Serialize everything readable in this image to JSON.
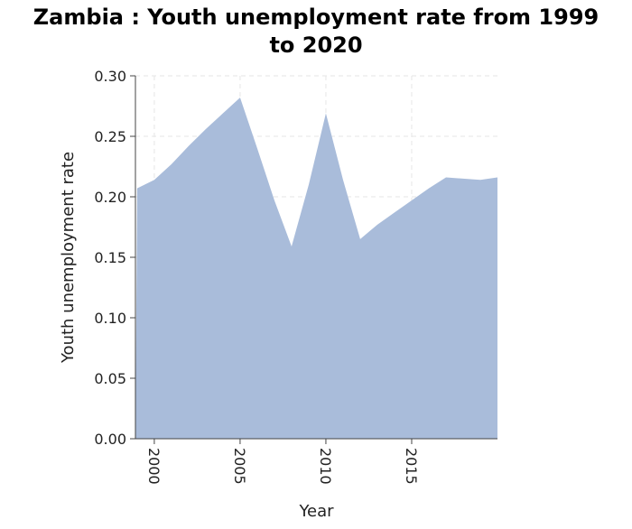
{
  "chart_data": {
    "type": "area",
    "title_lines": [
      "Zambia : Youth unemployment rate from 1999",
      "to 2020"
    ],
    "xlabel": "Year",
    "ylabel": "Youth unemployment rate",
    "xlim": [
      1998.9,
      2020.0
    ],
    "ylim": [
      0.0,
      0.3
    ],
    "x_ticks": [
      2000,
      2005,
      2010,
      2015
    ],
    "x_tick_labels": [
      "2000",
      "2005",
      "2010",
      "2015"
    ],
    "y_ticks": [
      0.0,
      0.05,
      0.1,
      0.15,
      0.2,
      0.25,
      0.3
    ],
    "y_tick_labels": [
      "0.00",
      "0.05",
      "0.10",
      "0.15",
      "0.20",
      "0.25",
      "0.30"
    ],
    "grid": true,
    "fill_color": "#a9bcda",
    "series": [
      {
        "x": [
          1999,
          2000,
          2001,
          2002,
          2003,
          2004,
          2005,
          2006,
          2007,
          2008,
          2009,
          2010,
          2011,
          2012,
          2013,
          2014,
          2015,
          2016,
          2017,
          2018,
          2019,
          2020
        ],
        "values": [
          0.207,
          0.214,
          0.227,
          0.242,
          0.256,
          0.269,
          0.282,
          0.24,
          0.197,
          0.159,
          0.21,
          0.269,
          0.214,
          0.165,
          0.177,
          0.187,
          0.197,
          0.207,
          0.216,
          0.215,
          0.214,
          0.216
        ]
      }
    ]
  }
}
